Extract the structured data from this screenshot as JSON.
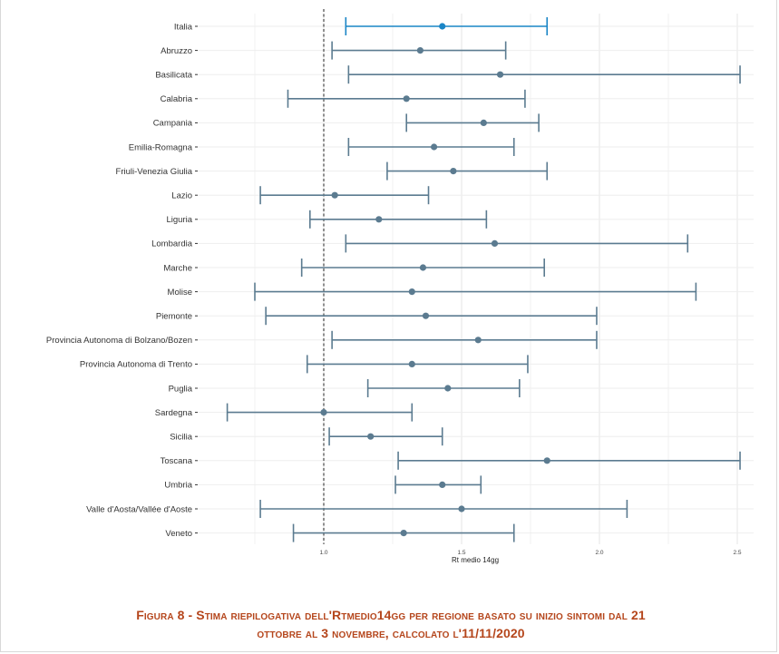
{
  "chart_data": {
    "type": "errorbar",
    "title": "",
    "xlabel": "Rt medio 14gg",
    "ylabel": "",
    "xlim": [
      0.62,
      2.58
    ],
    "xticks": [
      "1.0",
      "1.5",
      "2.0",
      "2.5"
    ],
    "xtick_values": [
      1.0,
      1.5,
      2.0,
      2.5
    ],
    "reference_line": 1.0,
    "grid": true,
    "colors": {
      "highlight": "#1a85c6",
      "default": "#5b7b90"
    },
    "categories": [
      "Italia",
      "Abruzzo",
      "Basilicata",
      "Calabria",
      "Campania",
      "Emilia-Romagna",
      "Friuli-Venezia Giulia",
      "Lazio",
      "Liguria",
      "Lombardia",
      "Marche",
      "Molise",
      "Piemonte",
      "Provincia Autonoma di Bolzano/Bozen",
      "Provincia Autonoma di Trento",
      "Puglia",
      "Sardegna",
      "Sicilia",
      "Toscana",
      "Umbria",
      "Valle d'Aosta/Vallée d'Aoste",
      "Veneto"
    ],
    "values": [
      1.43,
      1.35,
      1.64,
      1.3,
      1.58,
      1.4,
      1.47,
      1.04,
      1.2,
      1.62,
      1.36,
      1.32,
      1.37,
      1.56,
      1.32,
      1.45,
      1.0,
      1.17,
      1.81,
      1.43,
      1.5,
      1.29
    ],
    "lower": [
      1.08,
      1.03,
      1.09,
      0.87,
      1.3,
      1.09,
      1.23,
      0.77,
      0.95,
      1.08,
      0.92,
      0.75,
      0.79,
      1.03,
      0.94,
      1.16,
      0.65,
      1.02,
      1.27,
      1.26,
      0.77,
      0.89
    ],
    "upper": [
      1.81,
      1.66,
      2.51,
      1.73,
      1.78,
      1.69,
      1.81,
      1.38,
      1.59,
      2.32,
      1.8,
      2.35,
      1.99,
      1.99,
      1.74,
      1.71,
      1.32,
      1.43,
      2.51,
      1.57,
      2.1,
      1.69
    ],
    "highlight_index": 0
  },
  "caption": {
    "line1": "Figura 8 - Stima riepilogativa dell'Rtmedio14gg per regione basato su inizio sintomi dal 21",
    "line2": "ottobre al 3 novembre, calcolato l'11/11/2020"
  }
}
